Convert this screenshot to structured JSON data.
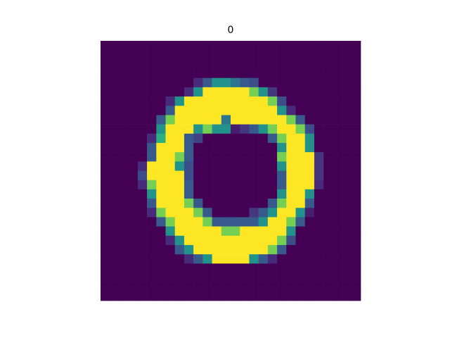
{
  "chart_data": {
    "type": "heatmap",
    "title": "0",
    "colormap": "viridis",
    "clim": [
      0,
      253
    ],
    "values": [
      [
        0,
        0,
        0,
        0,
        0,
        0,
        0,
        0,
        0,
        0,
        0,
        0,
        0,
        0,
        0,
        0,
        0,
        0,
        0,
        0,
        0,
        0,
        0,
        0,
        0,
        0,
        0,
        0
      ],
      [
        0,
        0,
        0,
        0,
        0,
        0,
        0,
        0,
        0,
        0,
        0,
        0,
        0,
        0,
        0,
        0,
        0,
        0,
        0,
        0,
        0,
        0,
        0,
        0,
        0,
        0,
        0,
        0
      ],
      [
        0,
        0,
        0,
        0,
        0,
        0,
        0,
        0,
        0,
        0,
        0,
        0,
        0,
        0,
        0,
        0,
        0,
        0,
        0,
        0,
        0,
        0,
        0,
        0,
        0,
        0,
        0,
        0
      ],
      [
        0,
        0,
        0,
        0,
        0,
        0,
        0,
        0,
        0,
        0,
        0,
        0,
        0,
        0,
        0,
        0,
        0,
        0,
        0,
        0,
        0,
        0,
        0,
        0,
        0,
        0,
        0,
        0
      ],
      [
        0,
        0,
        0,
        0,
        0,
        0,
        0,
        0,
        0,
        0,
        30,
        70,
        130,
        130,
        100,
        70,
        60,
        0,
        0,
        0,
        0,
        0,
        0,
        0,
        0,
        0,
        0,
        0
      ],
      [
        0,
        0,
        0,
        0,
        0,
        0,
        0,
        0,
        0,
        30,
        130,
        253,
        253,
        253,
        253,
        253,
        200,
        130,
        40,
        0,
        0,
        0,
        0,
        0,
        0,
        0,
        0,
        0
      ],
      [
        0,
        0,
        0,
        0,
        0,
        0,
        0,
        30,
        130,
        253,
        253,
        253,
        253,
        253,
        253,
        253,
        253,
        253,
        200,
        60,
        0,
        0,
        0,
        0,
        0,
        0,
        0,
        0
      ],
      [
        0,
        0,
        0,
        0,
        0,
        0,
        0,
        70,
        253,
        253,
        253,
        253,
        253,
        253,
        253,
        253,
        253,
        253,
        253,
        130,
        30,
        0,
        0,
        0,
        0,
        0,
        0,
        0
      ],
      [
        0,
        0,
        0,
        0,
        0,
        0,
        70,
        200,
        253,
        253,
        253,
        253,
        253,
        100,
        253,
        253,
        253,
        253,
        253,
        253,
        200,
        70,
        0,
        0,
        0,
        0,
        0,
        0
      ],
      [
        0,
        0,
        0,
        0,
        0,
        0,
        130,
        253,
        253,
        253,
        130,
        200,
        130,
        130,
        20,
        40,
        70,
        130,
        200,
        253,
        253,
        200,
        60,
        0,
        0,
        0,
        0,
        0
      ],
      [
        0,
        0,
        0,
        0,
        0,
        30,
        160,
        253,
        253,
        70,
        50,
        0,
        0,
        0,
        0,
        0,
        0,
        0,
        70,
        200,
        253,
        253,
        130,
        0,
        0,
        0,
        0,
        0
      ],
      [
        0,
        0,
        0,
        0,
        0,
        70,
        253,
        253,
        253,
        70,
        0,
        0,
        0,
        0,
        0,
        0,
        0,
        0,
        0,
        130,
        253,
        253,
        130,
        0,
        0,
        0,
        0,
        0
      ],
      [
        0,
        0,
        0,
        0,
        0,
        70,
        253,
        253,
        200,
        70,
        0,
        0,
        0,
        0,
        0,
        0,
        0,
        0,
        0,
        200,
        253,
        253,
        253,
        40,
        0,
        0,
        0,
        0
      ],
      [
        0,
        0,
        0,
        0,
        30,
        253,
        253,
        253,
        130,
        60,
        0,
        0,
        0,
        0,
        0,
        0,
        0,
        0,
        0,
        130,
        253,
        253,
        253,
        40,
        0,
        0,
        0,
        0
      ],
      [
        0,
        0,
        0,
        0,
        60,
        253,
        253,
        253,
        253,
        60,
        0,
        0,
        0,
        0,
        0,
        0,
        0,
        0,
        0,
        70,
        253,
        253,
        253,
        40,
        0,
        0,
        0,
        0
      ],
      [
        0,
        0,
        0,
        0,
        30,
        200,
        253,
        253,
        253,
        70,
        0,
        0,
        0,
        0,
        0,
        0,
        0,
        0,
        0,
        70,
        253,
        253,
        253,
        30,
        0,
        0,
        0,
        0
      ],
      [
        0,
        0,
        0,
        0,
        0,
        130,
        253,
        253,
        253,
        70,
        0,
        0,
        0,
        0,
        0,
        0,
        0,
        0,
        0,
        130,
        253,
        253,
        130,
        0,
        0,
        0,
        0,
        0
      ],
      [
        0,
        0,
        0,
        0,
        0,
        70,
        253,
        253,
        253,
        200,
        70,
        0,
        0,
        0,
        0,
        0,
        0,
        0,
        70,
        200,
        253,
        253,
        70,
        0,
        0,
        0,
        0,
        0
      ],
      [
        0,
        0,
        0,
        0,
        0,
        30,
        200,
        253,
        253,
        253,
        200,
        70,
        0,
        0,
        0,
        0,
        40,
        70,
        130,
        253,
        253,
        130,
        20,
        0,
        0,
        0,
        0,
        0
      ],
      [
        0,
        0,
        0,
        0,
        0,
        0,
        70,
        200,
        253,
        253,
        253,
        200,
        70,
        70,
        70,
        70,
        70,
        130,
        253,
        253,
        200,
        70,
        0,
        0,
        0,
        0,
        0,
        0
      ],
      [
        0,
        0,
        0,
        0,
        0,
        0,
        0,
        130,
        253,
        253,
        253,
        253,
        253,
        200,
        200,
        253,
        253,
        253,
        253,
        253,
        130,
        0,
        0,
        0,
        0,
        0,
        0,
        0
      ],
      [
        0,
        0,
        0,
        0,
        0,
        0,
        0,
        30,
        130,
        253,
        253,
        253,
        253,
        253,
        253,
        253,
        253,
        253,
        253,
        200,
        60,
        0,
        0,
        0,
        0,
        0,
        0,
        0
      ],
      [
        0,
        0,
        0,
        0,
        0,
        0,
        0,
        0,
        70,
        130,
        253,
        253,
        253,
        253,
        253,
        253,
        253,
        253,
        200,
        70,
        0,
        0,
        0,
        0,
        0,
        0,
        0,
        0
      ],
      [
        0,
        0,
        0,
        0,
        0,
        0,
        0,
        0,
        0,
        30,
        70,
        130,
        253,
        253,
        253,
        253,
        130,
        70,
        30,
        0,
        0,
        0,
        0,
        0,
        0,
        0,
        0,
        0
      ],
      [
        0,
        0,
        0,
        0,
        0,
        0,
        0,
        0,
        0,
        0,
        0,
        0,
        0,
        0,
        0,
        0,
        0,
        0,
        0,
        0,
        0,
        0,
        0,
        0,
        0,
        0,
        0,
        0
      ],
      [
        0,
        0,
        0,
        0,
        0,
        0,
        0,
        0,
        0,
        0,
        0,
        0,
        0,
        0,
        0,
        0,
        0,
        0,
        0,
        0,
        0,
        0,
        0,
        0,
        0,
        0,
        0,
        0
      ],
      [
        0,
        0,
        0,
        0,
        0,
        0,
        0,
        0,
        0,
        0,
        0,
        0,
        0,
        0,
        0,
        0,
        0,
        0,
        0,
        0,
        0,
        0,
        0,
        0,
        0,
        0,
        0,
        0
      ],
      [
        0,
        0,
        0,
        0,
        0,
        0,
        0,
        0,
        0,
        0,
        0,
        0,
        0,
        0,
        0,
        0,
        0,
        0,
        0,
        0,
        0,
        0,
        0,
        0,
        0,
        0,
        0,
        0
      ]
    ]
  }
}
